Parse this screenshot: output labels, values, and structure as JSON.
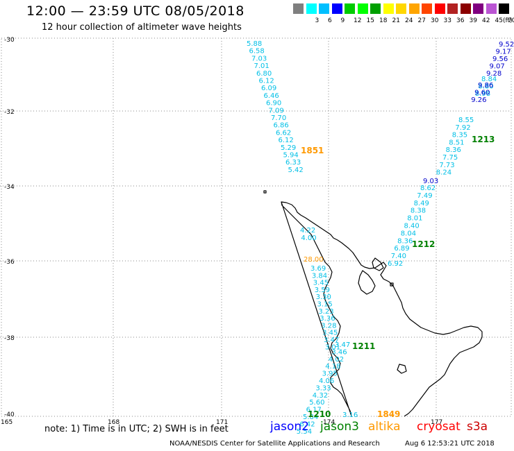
{
  "header": {
    "title": "12:00 — 23:59 UTC 08/05/2018",
    "subtitle": "12 hour collection of altimeter wave heights"
  },
  "scale": {
    "unit": "(ft)",
    "swatches": [
      {
        "label": "",
        "color": "#7f7f7f"
      },
      {
        "label": "3",
        "color": "#00ffff"
      },
      {
        "label": "6",
        "color": "#00bfff"
      },
      {
        "label": "9",
        "color": "#0000ff"
      },
      {
        "label": "12",
        "color": "#00cc00"
      },
      {
        "label": "15",
        "color": "#00ff00"
      },
      {
        "label": "18",
        "color": "#00a000"
      },
      {
        "label": "21",
        "color": "#ffff00"
      },
      {
        "label": "24",
        "color": "#ffd700"
      },
      {
        "label": "27",
        "color": "#ffa500"
      },
      {
        "label": "30",
        "color": "#ff4500"
      },
      {
        "label": "33",
        "color": "#ff0000"
      },
      {
        "label": "36",
        "color": "#b22222"
      },
      {
        "label": "39",
        "color": "#8b0000"
      },
      {
        "label": "42",
        "color": "#800080"
      },
      {
        "label": "45",
        "color": "#ba55d3"
      },
      {
        "label": "70",
        "color": "#000000"
      }
    ]
  },
  "axes": {
    "lat_labels": [
      "-30",
      "-32",
      "-34",
      "-36",
      "-38",
      "-40"
    ],
    "lon_labels": [
      "165",
      "168",
      "171",
      "174",
      "177"
    ]
  },
  "colors": {
    "cyan": "#00bfe6",
    "blue": "#0000cc",
    "green": "#008000",
    "orange": "#ff9900",
    "gray": "#7f7f7f"
  },
  "tracks": [
    {
      "color": "cyan",
      "values": [
        "5.88",
        "6.58",
        "7.03",
        "7.01",
        "6.80",
        "6.12",
        "6.09",
        "6.46",
        "6.90",
        "7.09",
        "7.70",
        "6.86",
        "6.62",
        "6.12",
        "5.29",
        "5.94",
        "6.33",
        "5.42"
      ]
    },
    {
      "color": "blue",
      "values": [
        "9.52",
        "9.17",
        "9.56",
        "9.07",
        "9.28"
      ]
    },
    {
      "color": "cyan",
      "values": [
        "8.84",
        "8.80",
        "8.98"
      ]
    },
    {
      "color": "blue",
      "values": [
        "9.86",
        "9.60",
        "9.26"
      ]
    },
    {
      "color": "cyan",
      "values": [
        "8.55",
        "7.92",
        "8.35",
        "8.51",
        "8.36",
        "7.75",
        "7.73",
        "8.24"
      ]
    },
    {
      "color": "blue",
      "values": [
        "9.03"
      ]
    },
    {
      "color": "cyan",
      "values": [
        "8.62",
        "7.49",
        "8.49",
        "8.38",
        "8.01",
        "8.40",
        "8.04",
        "8.36",
        "6.89",
        "7.40",
        "6.92"
      ]
    },
    {
      "color": "cyan",
      "values": [
        "4.22",
        "4.00"
      ]
    },
    {
      "color": "orange",
      "values": [
        "28.00"
      ]
    },
    {
      "color": "cyan",
      "values": [
        "3.69",
        "3.84",
        "3.45",
        "3.59",
        "3.30",
        "3.15",
        "3.23",
        "3.36",
        "3.28",
        "3.45",
        "3.47",
        "3.01"
      ]
    },
    {
      "color": "cyan",
      "values": [
        "3.47",
        "3.46",
        "4.02",
        "4.18",
        "3.95",
        "4.06",
        "3.33",
        "4.32",
        "5.60",
        "6.17",
        "5.84",
        "6.42",
        "5.54"
      ]
    },
    {
      "color": "cyan",
      "values": [
        "3.16"
      ]
    }
  ],
  "pass_labels": [
    {
      "text": "1851",
      "color": "orange"
    },
    {
      "text": "1213",
      "color": "green"
    },
    {
      "text": "1212",
      "color": "green"
    },
    {
      "text": "1211",
      "color": "green"
    },
    {
      "text": "1210",
      "color": "green"
    },
    {
      "text": "1849",
      "color": "orange"
    }
  ],
  "footer": {
    "note": "note:  1) Time is in UTC;  2) SWH is in feet",
    "satellites": [
      {
        "name": "jason2",
        "color": "#0000ff"
      },
      {
        "name": "jason3",
        "color": "#008000"
      },
      {
        "name": "altika",
        "color": "#ff9900"
      },
      {
        "name": "cryosat",
        "color": "#ff0000"
      },
      {
        "name": "s3a",
        "color": "#cc0000"
      }
    ],
    "credit": "NOAA/NESDIS Center for Satellite Applications and Research",
    "timestamp": "Aug  6 12:53:21 UTC 2018"
  }
}
